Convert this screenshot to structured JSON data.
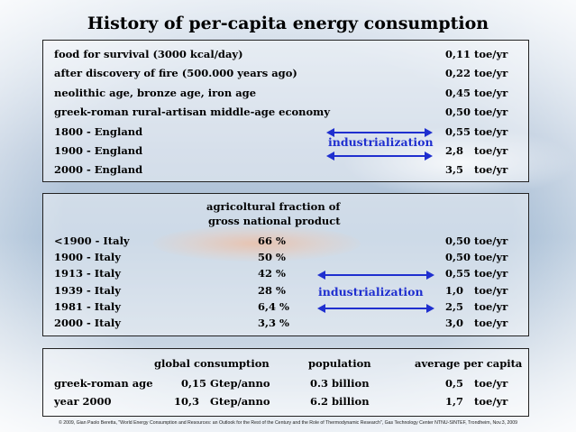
{
  "title": "History of per-capita energy consumption",
  "panel1": {
    "rows": [
      {
        "label": "food for survival (3000 kcal/day)",
        "value": "0,11 toe/yr"
      },
      {
        "label": "after discovery of fire (500.000 years ago)",
        "value": "0,22 toe/yr"
      },
      {
        "label": "neolithic age, bronze age, iron age",
        "value": "0,45 toe/yr"
      },
      {
        "label": "greek-roman rural-artisan middle-age economy",
        "value": "0,50 toe/yr"
      },
      {
        "label": "1800 - England",
        "value": "0,55 toe/yr"
      },
      {
        "label": "1900 - England",
        "value": "2,8   toe/yr"
      },
      {
        "label": "2000 - England",
        "value": "3,5   toe/yr"
      }
    ],
    "annotation": "industrialization"
  },
  "panel2": {
    "header_line1": "agricoltural fraction of",
    "header_line2": "gross national product",
    "rows": [
      {
        "label": "<1900 - Italy",
        "fraction": "66 %",
        "value": "0,50 toe/yr"
      },
      {
        "label": "1900 - Italy",
        "fraction": "50 %",
        "value": "0,50 toe/yr"
      },
      {
        "label": "1913 - Italy",
        "fraction": "42 %",
        "value": "0,55 toe/yr"
      },
      {
        "label": "1939 - Italy",
        "fraction": "28 %",
        "value": "1,0   toe/yr"
      },
      {
        "label": "1981 - Italy",
        "fraction": "6,4 %",
        "value": "2,5   toe/yr"
      },
      {
        "label": "2000 - Italy",
        "fraction": "3,3 %",
        "value": "3,0   toe/yr"
      }
    ],
    "annotation": "industrialization"
  },
  "panel3": {
    "headers": {
      "global": "global consumption",
      "population": "population",
      "average": "average per capita"
    },
    "rows": [
      {
        "label": "greek-roman age",
        "global": "0,15 Gtep/anno",
        "population": "0.3 billion",
        "average": "0,5   toe/yr"
      },
      {
        "label": "year 2000",
        "global": "10,3   Gtep/anno",
        "population": "6.2 billion",
        "average": "1,7   toe/yr"
      }
    ]
  },
  "footer": "© 2009, Gian Paolo Beretta, \"World Energy Consumption and Resources: an Outlook for the Rest of the Century and the Role of Thermodynamic Research\", Gas Technology Center NTNU-SINTEF, Trondheim, Nov.3, 2009",
  "colors": {
    "accent": "#1f2fcf",
    "text": "#000000"
  }
}
